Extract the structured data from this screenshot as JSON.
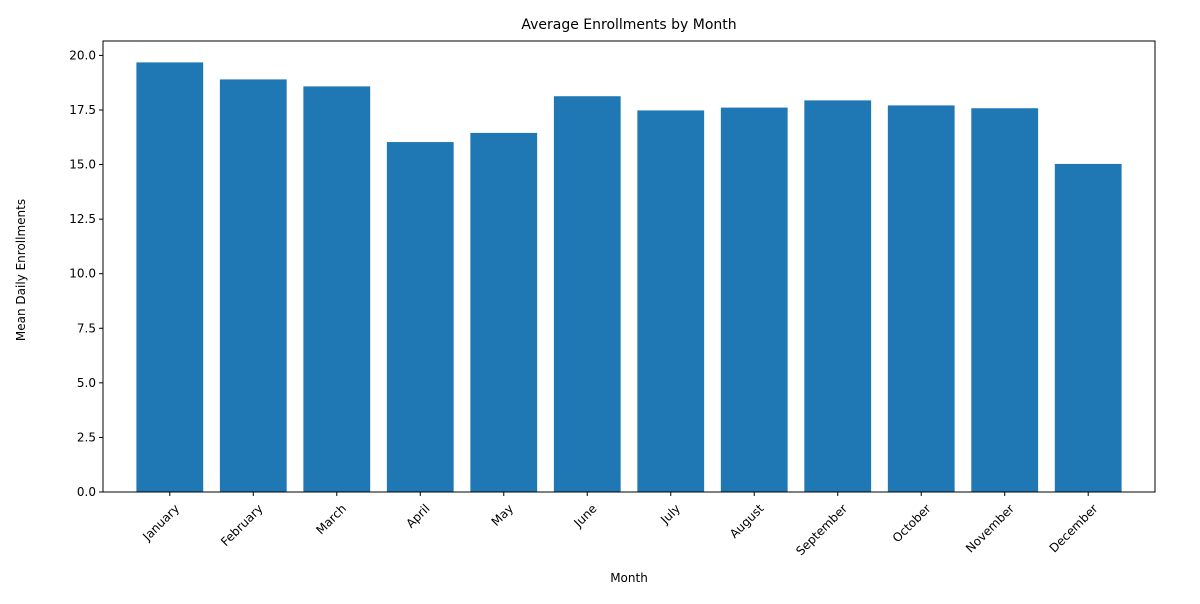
{
  "chart_data": {
    "type": "bar",
    "title": "Average Enrollments by Month",
    "xlabel": "Month",
    "ylabel": "Mean Daily Enrollments",
    "categories": [
      "January",
      "February",
      "March",
      "April",
      "May",
      "June",
      "July",
      "August",
      "September",
      "October",
      "November",
      "December"
    ],
    "values": [
      19.68,
      18.9,
      18.58,
      16.03,
      16.45,
      18.13,
      17.48,
      17.61,
      17.94,
      17.71,
      17.58,
      15.03
    ],
    "ylim": [
      0,
      20.66
    ],
    "yticks": [
      "0.0",
      "2.5",
      "5.0",
      "7.5",
      "10.0",
      "12.5",
      "15.0",
      "17.5",
      "20.0"
    ],
    "ytick_values": [
      0,
      2.5,
      5,
      7.5,
      10,
      12.5,
      15,
      17.5,
      20
    ],
    "bar_color": "#1f77b4",
    "grid": false,
    "legend": "none"
  }
}
